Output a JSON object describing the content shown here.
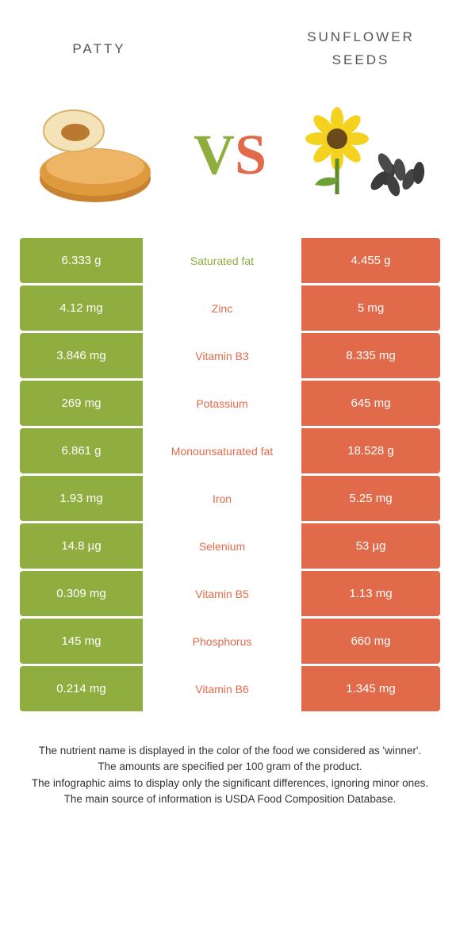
{
  "colors": {
    "left_food": "#8fae3f",
    "right_food": "#e16a4a",
    "vs_v": "#8fae3f",
    "vs_s": "#e16a4a"
  },
  "header": {
    "left_title": "patty",
    "right_title": "sunflower seeds"
  },
  "rows": [
    {
      "left": "6.333 g",
      "label": "Saturated fat",
      "right": "4.455 g",
      "winner": "left"
    },
    {
      "left": "4.12 mg",
      "label": "Zinc",
      "right": "5 mg",
      "winner": "right"
    },
    {
      "left": "3.846 mg",
      "label": "Vitamin B3",
      "right": "8.335 mg",
      "winner": "right"
    },
    {
      "left": "269 mg",
      "label": "Potassium",
      "right": "645 mg",
      "winner": "right"
    },
    {
      "left": "6.861 g",
      "label": "Monounsaturated fat",
      "right": "18.528 g",
      "winner": "right"
    },
    {
      "left": "1.93 mg",
      "label": "Iron",
      "right": "5.25 mg",
      "winner": "right"
    },
    {
      "left": "14.8 µg",
      "label": "Selenium",
      "right": "53 µg",
      "winner": "right"
    },
    {
      "left": "0.309 mg",
      "label": "Vitamin B5",
      "right": "1.13 mg",
      "winner": "right"
    },
    {
      "left": "145 mg",
      "label": "Phosphorus",
      "right": "660 mg",
      "winner": "right"
    },
    {
      "left": "0.214 mg",
      "label": "Vitamin B6",
      "right": "1.345 mg",
      "winner": "right"
    }
  ],
  "footnotes": [
    "The nutrient name is displayed in the color of the food we considered as 'winner'.",
    "The amounts are specified per 100 gram of the product.",
    "The infographic aims to display only the significant differences, ignoring minor ones.",
    "The main source of information is USDA Food Composition Database."
  ]
}
